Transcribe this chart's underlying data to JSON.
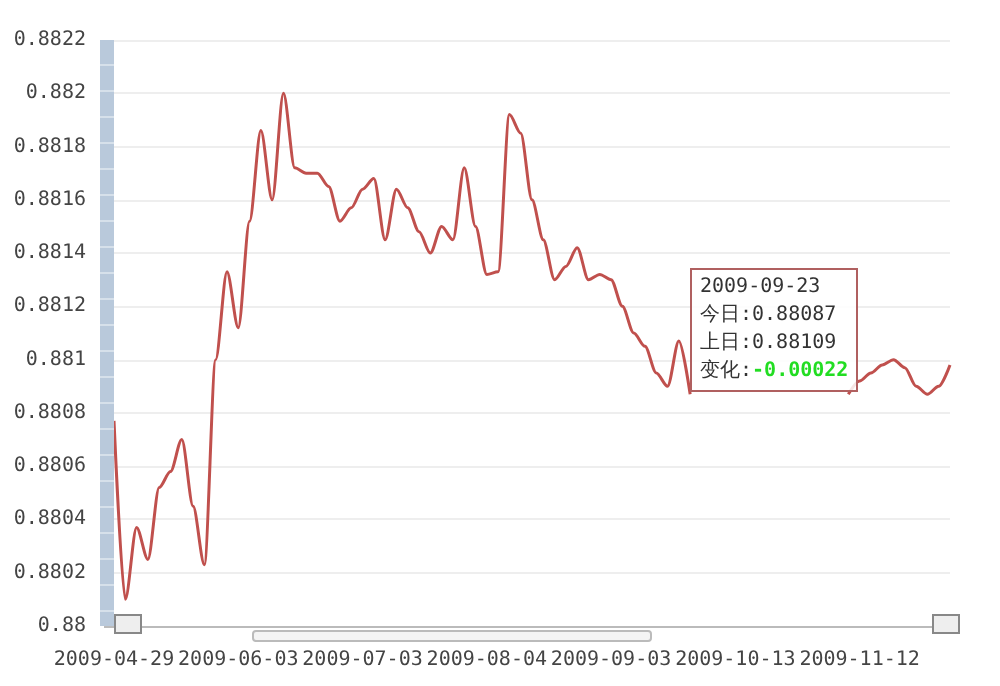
{
  "chart_data": {
    "type": "line",
    "categories": [
      "2009-04-29",
      null,
      null,
      null,
      null,
      null,
      null,
      null,
      null,
      null,
      null,
      "2009-06-03",
      null,
      null,
      null,
      null,
      null,
      null,
      null,
      null,
      null,
      null,
      "2009-07-03",
      null,
      null,
      null,
      null,
      null,
      null,
      null,
      null,
      null,
      null,
      "2009-08-04",
      null,
      null,
      null,
      null,
      null,
      null,
      null,
      null,
      null,
      null,
      "2009-09-03",
      null,
      null,
      null,
      null,
      null,
      null,
      null,
      null,
      null,
      null,
      "2009-10-13",
      null,
      null,
      null,
      null,
      null,
      null,
      null,
      null,
      null,
      null,
      "2009-11-12",
      null,
      null,
      null,
      null,
      null,
      null,
      null,
      null
    ],
    "series": [
      {
        "color": "#c0504d",
        "values": [
          0.88077,
          0.8801,
          0.88037,
          0.88025,
          0.88052,
          0.88058,
          0.8807,
          0.88045,
          0.88023,
          0.881,
          0.88133,
          0.88112,
          0.88152,
          0.88186,
          0.8816,
          0.882,
          0.88172,
          0.8817,
          0.8817,
          0.88165,
          0.88152,
          0.88157,
          0.88164,
          0.88168,
          0.88145,
          0.88164,
          0.88157,
          0.88148,
          0.8814,
          0.8815,
          0.88145,
          0.88172,
          0.8815,
          0.88132,
          0.88133,
          0.88192,
          0.88185,
          0.8816,
          0.88145,
          0.8813,
          0.88135,
          0.88142,
          0.8813,
          0.88132,
          0.8813,
          0.8812,
          0.8811,
          0.88105,
          0.88095,
          0.8809,
          0.88107,
          0.88087,
          null,
          null,
          null,
          null,
          null,
          null,
          null,
          null,
          null,
          null,
          null,
          null,
          null,
          0.88087,
          0.88092,
          0.88095,
          0.88098,
          0.881,
          0.88097,
          0.8809,
          0.88087,
          0.8809,
          0.88098
        ]
      }
    ],
    "ylim": [
      0.88,
      0.8822
    ],
    "yticks": [
      0.88,
      0.8802,
      0.8804,
      0.8806,
      0.8808,
      0.881,
      0.8812,
      0.8814,
      0.8816,
      0.8818,
      0.882,
      0.8822
    ],
    "grid": "y",
    "marker": "none",
    "annotations": [
      "2009-09-23",
      "今日:0.88087",
      "上日:0.88109",
      "变化:-0.00022"
    ]
  }
}
